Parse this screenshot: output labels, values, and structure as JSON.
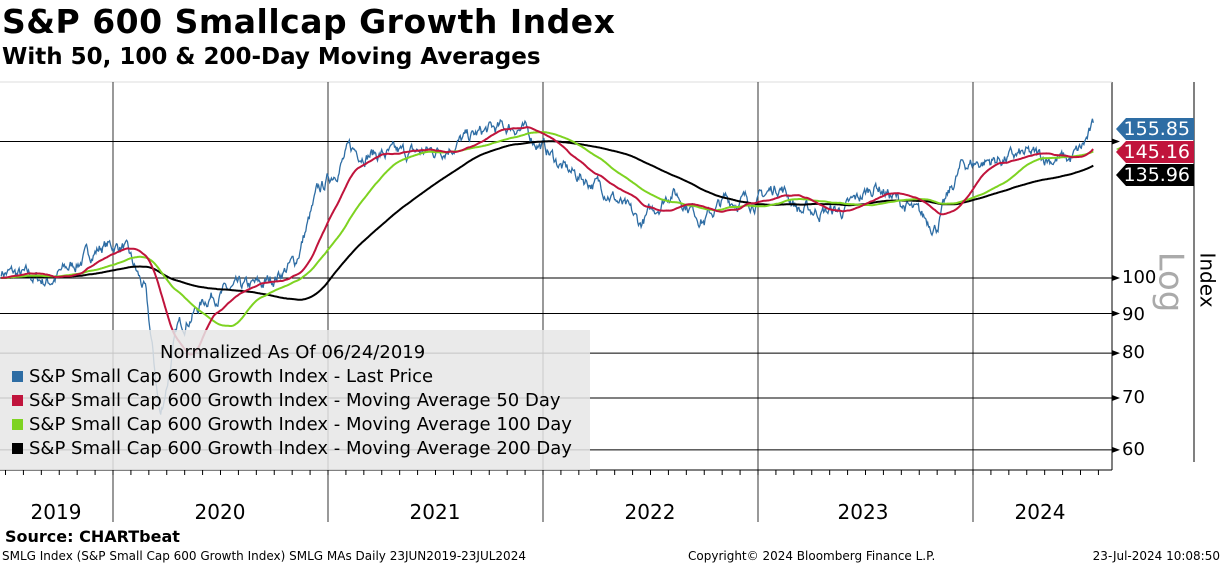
{
  "title": "S&P 600 Smallcap Growth Index",
  "subtitle": "With 50, 100 & 200-Day Moving Averages",
  "source": "Source: CHARTbeat",
  "footer": {
    "left": "SMLG Index (S&P Small Cap 600 Growth Index) SMLG MAs  Daily 23JUN2019-23JUL2024",
    "center": "Copyright© 2024 Bloomberg Finance L.P.",
    "right": "23-Jul-2024 10:08:50"
  },
  "chart_data": {
    "type": "line",
    "title": "S&P 600 Smallcap Growth Index",
    "ylabel": "Index",
    "yscale_label": "Log",
    "yscale": "log",
    "ylim": [
      56,
      175
    ],
    "yticks": [
      "60",
      "70",
      "80",
      "90",
      "100"
    ],
    "ytick_values": [
      60,
      70,
      80,
      90,
      100
    ],
    "gridline_values": [
      60,
      70,
      80,
      90,
      100,
      150
    ],
    "xlim": [
      2019.48,
      2024.56
    ],
    "xticks": [
      "2019",
      "2020",
      "2021",
      "2022",
      "2023",
      "2024"
    ],
    "legend": {
      "placement": "bottom-left",
      "note": "Normalized As Of 06/24/2019"
    },
    "series": [
      {
        "name": "S&P Small Cap 600 Growth Index - Last Price",
        "color": "#2e6da4",
        "last": "155.85",
        "keypoints": [
          [
            2019.48,
            102
          ],
          [
            2019.7,
            99
          ],
          [
            2019.95,
            110
          ],
          [
            2020.05,
            110
          ],
          [
            2020.15,
            96
          ],
          [
            2020.22,
            66
          ],
          [
            2020.3,
            86
          ],
          [
            2020.45,
            95
          ],
          [
            2020.7,
            98
          ],
          [
            2020.85,
            105
          ],
          [
            2020.95,
            128
          ],
          [
            2021.1,
            146
          ],
          [
            2021.3,
            144
          ],
          [
            2021.5,
            146
          ],
          [
            2021.75,
            155
          ],
          [
            2021.88,
            157
          ],
          [
            2022.0,
            148
          ],
          [
            2022.1,
            138
          ],
          [
            2022.3,
            130
          ],
          [
            2022.45,
            117
          ],
          [
            2022.6,
            130
          ],
          [
            2022.75,
            119
          ],
          [
            2022.85,
            126
          ],
          [
            2023.0,
            126
          ],
          [
            2023.1,
            132
          ],
          [
            2023.2,
            122
          ],
          [
            2023.4,
            122
          ],
          [
            2023.55,
            132
          ],
          [
            2023.75,
            120
          ],
          [
            2023.83,
            117
          ],
          [
            2023.95,
            140
          ],
          [
            2024.1,
            142
          ],
          [
            2024.25,
            144
          ],
          [
            2024.45,
            142
          ],
          [
            2024.5,
            146
          ],
          [
            2024.56,
            156
          ]
        ]
      },
      {
        "name": "S&P Small Cap 600 Growth Index - Moving Average 50 Day",
        "color": "#c0143c",
        "window": 50,
        "last": "145.16"
      },
      {
        "name": "S&P Small Cap 600 Growth Index - Moving Average 100 Day",
        "color": "#7ed321",
        "window": 100,
        "last": ""
      },
      {
        "name": "S&P Small Cap 600 Growth Index - Moving Average 200 Day",
        "color": "#000000",
        "window": 200,
        "last": "135.96"
      }
    ]
  }
}
